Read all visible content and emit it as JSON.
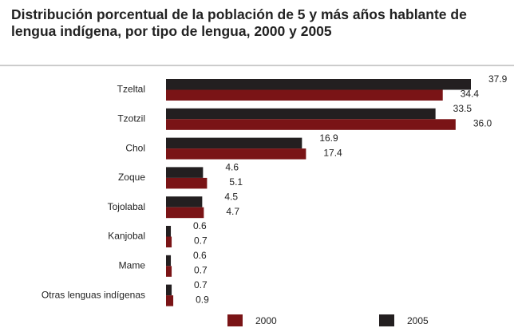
{
  "chart_data": {
    "type": "barh",
    "title": "Distribución porcentual de la población de 5 y más años hablante de lengua indígena, por tipo de lengua, 2000 y 2005",
    "categories": [
      "Tzeltal",
      "Tzotzil",
      "Chol",
      "Zoque",
      "Tojolabal",
      "Kanjobal",
      "Mame",
      "Otras lenguas indígenas"
    ],
    "series": [
      {
        "name": "2005",
        "color": "#231f20",
        "values": [
          37.9,
          33.5,
          16.9,
          4.6,
          4.5,
          0.6,
          0.6,
          0.7
        ],
        "value_labels": [
          "37.9",
          "33.5",
          "16.9",
          "4.6",
          "4.5",
          "0.6",
          "0.6",
          "0.7"
        ]
      },
      {
        "name": "2000",
        "color": "#7a1416",
        "values": [
          34.4,
          36.0,
          17.4,
          5.1,
          4.7,
          0.7,
          0.7,
          0.9
        ],
        "value_labels": [
          "34.4",
          "36.0",
          "17.4",
          "5.1",
          "4.7",
          "0.7",
          "0.7",
          "0.9"
        ]
      }
    ]
  }
}
